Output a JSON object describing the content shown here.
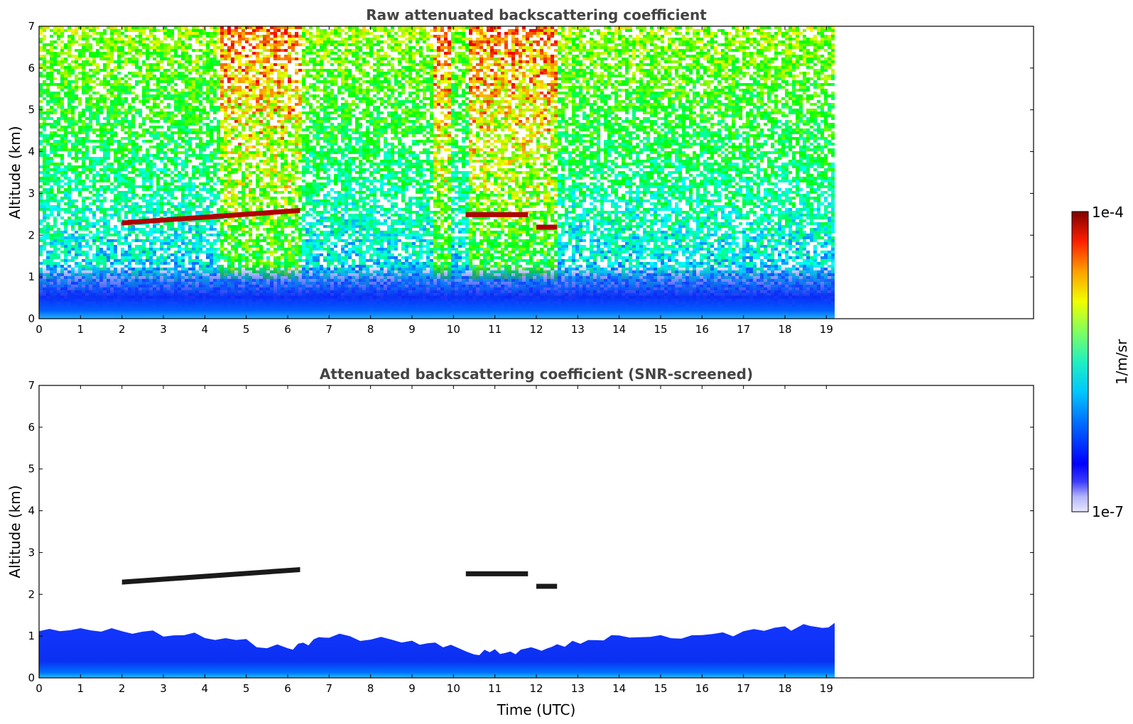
{
  "chart_data": [
    {
      "type": "heatmap",
      "title": "Raw attenuated backscattering coefficient",
      "xlabel": "",
      "ylabel": "Altitude (km)",
      "xlim": [
        0,
        24
      ],
      "ylim": [
        0,
        7
      ],
      "x_ticks": [
        0,
        1,
        2,
        3,
        4,
        5,
        6,
        7,
        8,
        9,
        10,
        11,
        12,
        13,
        14,
        15,
        16,
        17,
        18,
        19
      ],
      "y_ticks": [
        0,
        1,
        2,
        3,
        4,
        5,
        6,
        7
      ],
      "data_extent_x": [
        0,
        19.2
      ],
      "cloud_layers": [
        {
          "t_start": 2.0,
          "t_end": 6.3,
          "alt_start": 2.3,
          "alt_end": 2.6
        },
        {
          "t_start": 10.3,
          "t_end": 11.8,
          "alt_start": 2.5,
          "alt_end": 2.5
        },
        {
          "t_start": 12.0,
          "t_end": 12.5,
          "alt_start": 2.2,
          "alt_end": 2.2
        }
      ],
      "boundary_layer_top_km": 0.6
    },
    {
      "type": "heatmap",
      "title": "Attenuated backscattering coefficient (SNR-screened)",
      "xlabel": "Time (UTC)",
      "ylabel": "Altitude (km)",
      "xlim": [
        0,
        24
      ],
      "ylim": [
        0,
        7
      ],
      "x_ticks": [
        0,
        1,
        2,
        3,
        4,
        5,
        6,
        7,
        8,
        9,
        10,
        11,
        12,
        13,
        14,
        15,
        16,
        17,
        18,
        19
      ],
      "y_ticks": [
        0,
        1,
        2,
        3,
        4,
        5,
        6,
        7
      ],
      "data_extent_x": [
        0,
        19.2
      ],
      "cloud_layers": [
        {
          "t_start": 2.0,
          "t_end": 6.3,
          "alt_start": 2.3,
          "alt_end": 2.6
        },
        {
          "t_start": 10.3,
          "t_end": 11.8,
          "alt_start": 2.5,
          "alt_end": 2.5
        },
        {
          "t_start": 12.0,
          "t_end": 12.5,
          "alt_start": 2.2,
          "alt_end": 2.2
        }
      ],
      "boundary_layer_profile": [
        {
          "t": 0,
          "top_km": 1.1
        },
        {
          "t": 2,
          "top_km": 1.1
        },
        {
          "t": 4,
          "top_km": 1.0
        },
        {
          "t": 6,
          "top_km": 0.7
        },
        {
          "t": 7,
          "top_km": 1.0
        },
        {
          "t": 9,
          "top_km": 0.9
        },
        {
          "t": 10.5,
          "top_km": 0.6
        },
        {
          "t": 11.5,
          "top_km": 0.6
        },
        {
          "t": 12.5,
          "top_km": 0.8
        },
        {
          "t": 14,
          "top_km": 1.0
        },
        {
          "t": 16,
          "top_km": 1.0
        },
        {
          "t": 18,
          "top_km": 1.2
        },
        {
          "t": 19.2,
          "top_km": 1.3
        }
      ]
    }
  ],
  "colorbar": {
    "label": "1/m/sr",
    "max_label": "1e-4",
    "min_label": "1e-7",
    "colormap": [
      "#e8e8ff",
      "#c0c0ff",
      "#9090ff",
      "#0000ff",
      "#0050ff",
      "#00a0ff",
      "#00e0e0",
      "#40ff80",
      "#a0ff40",
      "#ffff00",
      "#ffa000",
      "#ff4000",
      "#d00000",
      "#800000"
    ]
  }
}
